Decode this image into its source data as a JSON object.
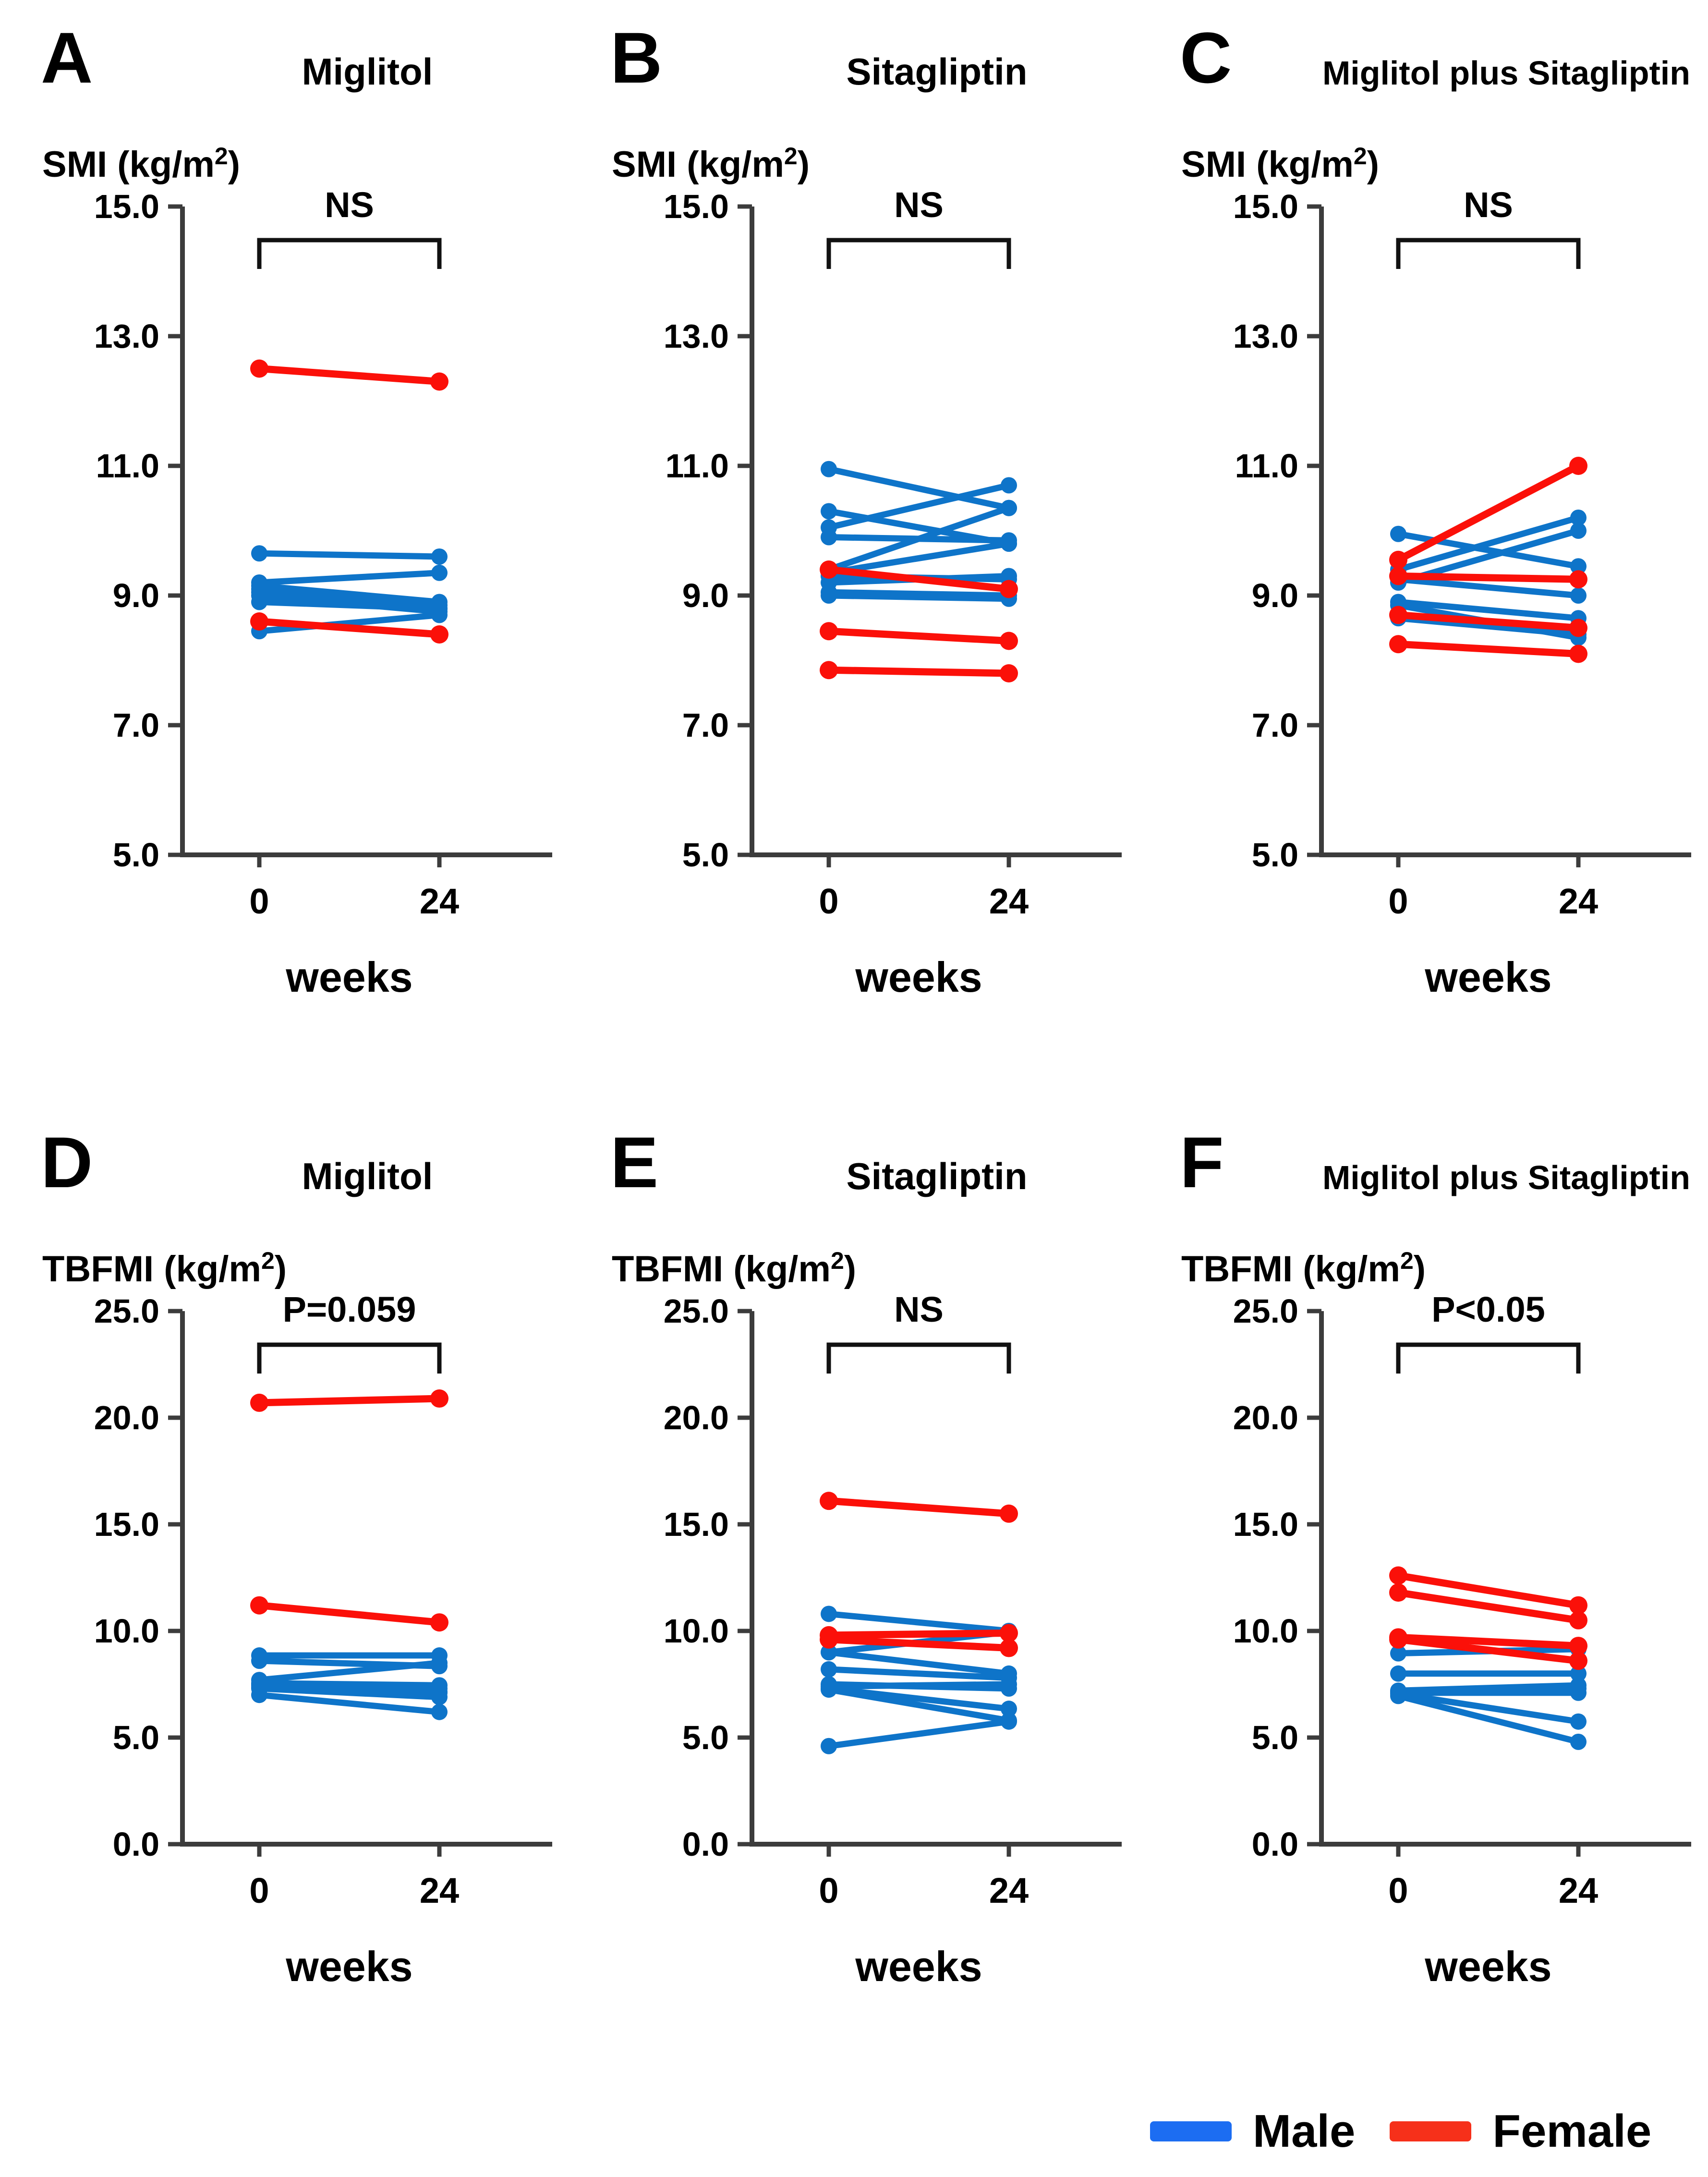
{
  "page": {
    "background": "#ffffff"
  },
  "styles": {
    "male_color": "#0e74c9",
    "female_color": "#fb1009",
    "legend_male_color": "#1c6df2",
    "legend_female_color": "#f6301a",
    "axis_color": "#3c3c3c",
    "bracket_color": "#111111",
    "text_color": "#000000"
  },
  "legend": {
    "items": [
      {
        "label": "Male",
        "series": "male",
        "color": "#1c6df2"
      },
      {
        "label": "Female",
        "series": "female",
        "color": "#f6301a"
      }
    ]
  },
  "chart_data": [
    {
      "panel_letter": "A",
      "type": "line",
      "title": "Miglitol",
      "ylabel": "SMI (kg/m²)",
      "xlabel": "weeks",
      "annotation": "NS",
      "x_ticks": [
        "0",
        "24"
      ],
      "x_values_weeks": [
        0,
        24
      ],
      "ylim": [
        5.0,
        15.0
      ],
      "yticks": [
        "15.0",
        "13.0",
        "11.0",
        "9.0",
        "7.0",
        "5.0"
      ],
      "grid": false,
      "series": [
        {
          "name": "Male",
          "color": "male",
          "pairs": [
            [
              9.65,
              9.6
            ],
            [
              9.2,
              9.35
            ],
            [
              9.15,
              8.9
            ],
            [
              9.1,
              8.8
            ],
            [
              9.05,
              8.85
            ],
            [
              9.0,
              8.75
            ],
            [
              8.9,
              8.8
            ],
            [
              8.45,
              8.7
            ]
          ]
        },
        {
          "name": "Female",
          "color": "female",
          "pairs": [
            [
              12.5,
              12.3
            ],
            [
              8.6,
              8.4
            ]
          ]
        }
      ]
    },
    {
      "panel_letter": "B",
      "type": "line",
      "title": "Sitagliptin",
      "ylabel": "SMI (kg/m²)",
      "xlabel": "weeks",
      "annotation": "NS",
      "x_ticks": [
        "0",
        "24"
      ],
      "x_values_weeks": [
        0,
        24
      ],
      "ylim": [
        5.0,
        15.0
      ],
      "yticks": [
        "15.0",
        "13.0",
        "11.0",
        "9.0",
        "7.0",
        "5.0"
      ],
      "grid": false,
      "series": [
        {
          "name": "Male",
          "color": "male",
          "pairs": [
            [
              10.95,
              10.35
            ],
            [
              10.3,
              9.8
            ],
            [
              10.05,
              10.7
            ],
            [
              9.9,
              9.85
            ],
            [
              9.4,
              10.35
            ],
            [
              9.35,
              9.8
            ],
            [
              9.3,
              9.25
            ],
            [
              9.2,
              9.3
            ],
            [
              9.05,
              9.0
            ],
            [
              9.0,
              8.95
            ]
          ]
        },
        {
          "name": "Female",
          "color": "female",
          "pairs": [
            [
              9.4,
              9.1
            ],
            [
              8.45,
              8.3
            ],
            [
              7.85,
              7.8
            ]
          ]
        }
      ]
    },
    {
      "panel_letter": "C",
      "type": "line",
      "title": "Miglitol plus Sitagliptin",
      "ylabel": "SMI (kg/m²)",
      "xlabel": "weeks",
      "annotation": "NS",
      "x_ticks": [
        "0",
        "24"
      ],
      "x_values_weeks": [
        0,
        24
      ],
      "ylim": [
        5.0,
        15.0
      ],
      "yticks": [
        "15.0",
        "13.0",
        "11.0",
        "9.0",
        "7.0",
        "5.0"
      ],
      "grid": false,
      "series": [
        {
          "name": "Male",
          "color": "male",
          "pairs": [
            [
              9.95,
              9.45
            ],
            [
              9.4,
              10.2
            ],
            [
              9.2,
              10.0
            ],
            [
              9.25,
              9.0
            ],
            [
              8.9,
              8.65
            ],
            [
              8.85,
              8.35
            ],
            [
              8.65,
              8.4
            ]
          ]
        },
        {
          "name": "Female",
          "color": "female",
          "pairs": [
            [
              9.55,
              11.0
            ],
            [
              9.3,
              9.25
            ],
            [
              8.7,
              8.5
            ],
            [
              8.25,
              8.1
            ]
          ]
        }
      ]
    },
    {
      "panel_letter": "D",
      "type": "line",
      "title": "Miglitol",
      "ylabel": "TBFMI (kg/m²)",
      "xlabel": "weeks",
      "annotation": "P=0.059",
      "x_ticks": [
        "0",
        "24"
      ],
      "x_values_weeks": [
        0,
        24
      ],
      "ylim": [
        0.0,
        25.0
      ],
      "yticks": [
        "25.0",
        "20.0",
        "15.0",
        "10.0",
        "5.0",
        "0.0"
      ],
      "grid": false,
      "series": [
        {
          "name": "Male",
          "color": "male",
          "pairs": [
            [
              8.85,
              8.85
            ],
            [
              8.6,
              8.35
            ],
            [
              7.7,
              8.5
            ],
            [
              7.55,
              7.45
            ],
            [
              7.5,
              7.3
            ],
            [
              7.45,
              7.15
            ],
            [
              7.35,
              7.1
            ],
            [
              7.3,
              6.9
            ],
            [
              7.0,
              6.2
            ]
          ]
        },
        {
          "name": "Female",
          "color": "female",
          "pairs": [
            [
              20.7,
              20.9
            ],
            [
              11.2,
              10.4
            ]
          ]
        }
      ]
    },
    {
      "panel_letter": "E",
      "type": "line",
      "title": "Sitagliptin",
      "ylabel": "TBFMI (kg/m²)",
      "xlabel": "weeks",
      "annotation": "NS",
      "x_ticks": [
        "0",
        "24"
      ],
      "x_values_weeks": [
        0,
        24
      ],
      "ylim": [
        0.0,
        25.0
      ],
      "yticks": [
        "25.0",
        "20.0",
        "15.0",
        "10.0",
        "5.0",
        "0.0"
      ],
      "grid": false,
      "series": [
        {
          "name": "Male",
          "color": "male",
          "pairs": [
            [
              10.8,
              10.0
            ],
            [
              9.0,
              9.95
            ],
            [
              9.0,
              8.0
            ],
            [
              8.2,
              7.8
            ],
            [
              7.5,
              7.3
            ],
            [
              7.4,
              7.5
            ],
            [
              7.3,
              6.35
            ],
            [
              7.25,
              5.8
            ],
            [
              4.6,
              5.75
            ]
          ]
        },
        {
          "name": "Female",
          "color": "female",
          "pairs": [
            [
              16.1,
              15.5
            ],
            [
              9.8,
              9.9
            ],
            [
              9.6,
              9.2
            ]
          ]
        }
      ]
    },
    {
      "panel_letter": "F",
      "type": "line",
      "title": "Miglitol plus Sitagliptin",
      "ylabel": "TBFMI (kg/m²)",
      "xlabel": "weeks",
      "annotation": "P<0.05",
      "x_ticks": [
        "0",
        "24"
      ],
      "x_values_weeks": [
        0,
        24
      ],
      "ylim": [
        0.0,
        25.0
      ],
      "yticks": [
        "25.0",
        "20.0",
        "15.0",
        "10.0",
        "5.0",
        "0.0"
      ],
      "grid": false,
      "series": [
        {
          "name": "Male",
          "color": "male",
          "pairs": [
            [
              8.95,
              9.15
            ],
            [
              8.0,
              8.0
            ],
            [
              7.2,
              7.45
            ],
            [
              7.15,
              7.3
            ],
            [
              7.1,
              7.1
            ],
            [
              7.05,
              5.75
            ],
            [
              6.95,
              4.8
            ]
          ]
        },
        {
          "name": "Female",
          "color": "female",
          "pairs": [
            [
              12.6,
              11.2
            ],
            [
              11.8,
              10.5
            ],
            [
              9.7,
              9.3
            ],
            [
              9.6,
              8.6
            ]
          ]
        }
      ]
    }
  ]
}
